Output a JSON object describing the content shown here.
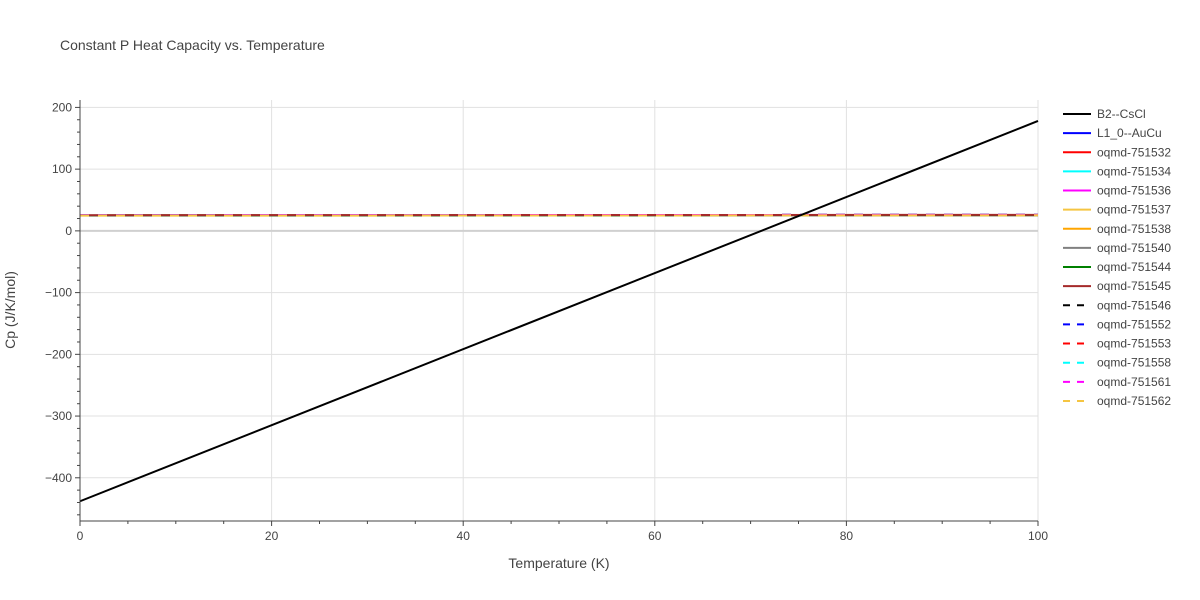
{
  "chart_data": {
    "type": "line",
    "title": "Constant P Heat Capacity vs. Temperature",
    "xlabel": "Temperature (K)",
    "ylabel": "Cp (J/K/mol)",
    "xlim": [
      0,
      100
    ],
    "ylim": [
      -470,
      212
    ],
    "x_ticks": [
      0,
      20,
      40,
      60,
      80,
      100
    ],
    "y_ticks": [
      200,
      100,
      0,
      -100,
      -200,
      -300,
      -400
    ],
    "x_tick_labels": [
      "0",
      "20",
      "40",
      "60",
      "80",
      "100"
    ],
    "y_tick_labels": [
      "200",
      "100",
      "0",
      "−100",
      "−200",
      "−300",
      "−400"
    ],
    "grid": true,
    "legend_position": "right",
    "series": [
      {
        "name": "B2--CsCl",
        "color": "#000000",
        "dash": "solid",
        "x": [
          0,
          100
        ],
        "y": [
          -438,
          178
        ]
      },
      {
        "name": "L1_0--AuCu",
        "color": "#0000ff",
        "dash": "solid",
        "x": [
          0,
          100
        ],
        "y": [
          25,
          25.6
        ]
      },
      {
        "name": "oqmd-751532",
        "color": "#ff0000",
        "dash": "solid",
        "x": [
          0,
          100
        ],
        "y": [
          25,
          25.6
        ]
      },
      {
        "name": "oqmd-751534",
        "color": "#00ffff",
        "dash": "solid",
        "x": [
          0,
          100
        ],
        "y": [
          25,
          25.6
        ]
      },
      {
        "name": "oqmd-751536",
        "color": "#ff00ff",
        "dash": "solid",
        "x": [
          0,
          100
        ],
        "y": [
          25,
          25.6
        ]
      },
      {
        "name": "oqmd-751537",
        "color": "#f5c542",
        "dash": "solid",
        "x": [
          0,
          100
        ],
        "y": [
          25,
          25.6
        ]
      },
      {
        "name": "oqmd-751538",
        "color": "#ffa500",
        "dash": "solid",
        "x": [
          0,
          100
        ],
        "y": [
          25,
          25.6
        ]
      },
      {
        "name": "oqmd-751540",
        "color": "#808080",
        "dash": "solid",
        "x": [
          0,
          100
        ],
        "y": [
          25,
          25.6
        ]
      },
      {
        "name": "oqmd-751544",
        "color": "#008000",
        "dash": "solid",
        "x": [
          0,
          100
        ],
        "y": [
          25,
          25.6
        ]
      },
      {
        "name": "oqmd-751545",
        "color": "#a52a2a",
        "dash": "solid",
        "x": [
          0,
          100
        ],
        "y": [
          25.3,
          26
        ]
      },
      {
        "name": "oqmd-751546",
        "color": "#000000",
        "dash": "dash",
        "x": [
          0,
          100
        ],
        "y": [
          25.3,
          26
        ]
      },
      {
        "name": "oqmd-751552",
        "color": "#0000ff",
        "dash": "dash",
        "x": [
          0,
          100
        ],
        "y": [
          25.3,
          26
        ]
      },
      {
        "name": "oqmd-751553",
        "color": "#ff0000",
        "dash": "dash",
        "x": [
          0,
          100
        ],
        "y": [
          25.3,
          26
        ]
      },
      {
        "name": "oqmd-751558",
        "color": "#00ffff",
        "dash": "dash",
        "x": [
          0,
          100
        ],
        "y": [
          25.3,
          26
        ]
      },
      {
        "name": "oqmd-751561",
        "color": "#ff00ff",
        "dash": "dash",
        "x": [
          0,
          100
        ],
        "y": [
          25.3,
          26
        ]
      },
      {
        "name": "oqmd-751562",
        "color": "#f5c542",
        "dash": "dash",
        "x": [
          0,
          100
        ],
        "y": [
          24.6,
          25.2
        ]
      }
    ]
  }
}
